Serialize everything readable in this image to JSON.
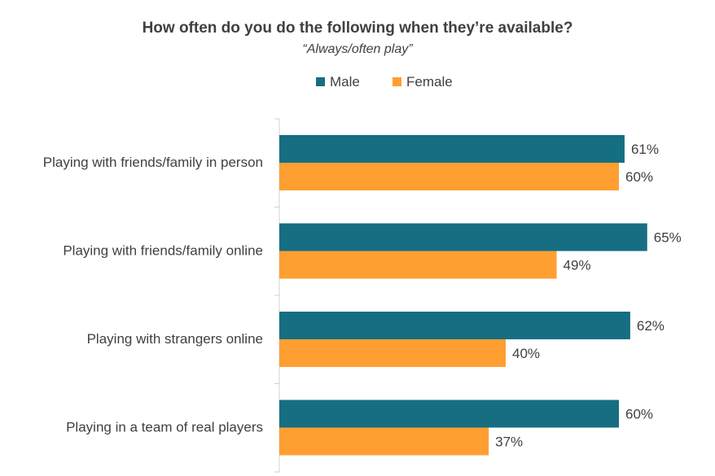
{
  "chart_data": {
    "type": "bar",
    "orientation": "horizontal",
    "title": "How often do you do the following when they’re available?",
    "subtitle": "“Always/often play”",
    "categories": [
      "Playing with friends/family in person",
      "Playing with friends/family online",
      "Playing with strangers online",
      "Playing in a team of real players"
    ],
    "series": [
      {
        "name": "Male",
        "color": "#166E82",
        "values": [
          61,
          65,
          62,
          60
        ],
        "labels": [
          "61%",
          "65%",
          "62%",
          "60%"
        ]
      },
      {
        "name": "Female",
        "color": "#FF9F32",
        "values": [
          60,
          49,
          40,
          37
        ],
        "labels": [
          "60%",
          "49%",
          "40%",
          "37%"
        ]
      }
    ],
    "xlim": [
      0,
      70
    ],
    "grid": false,
    "legend": "top-center",
    "unit": "%"
  }
}
